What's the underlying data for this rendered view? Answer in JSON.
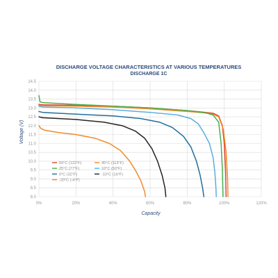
{
  "chart_data": {
    "type": "line",
    "title": "DISCHARGE VOLTAGE CHARACTERISTICS AT VARIOUS TEMPERATURES",
    "subtitle": "DISCHARGE 1C",
    "xlabel": "Capacity",
    "ylabel": "Voltage (V)",
    "xlim": [
      0,
      120
    ],
    "ylim": [
      8.0,
      14.5
    ],
    "x_ticks": [
      "0%",
      "20%",
      "40%",
      "60%",
      "80%",
      "100%",
      "120%"
    ],
    "y_ticks": [
      "8.0",
      "8.5",
      "9.0",
      "9.5",
      "10.0",
      "10.5",
      "11.0",
      "11.5",
      "12.0",
      "12.5",
      "13.0",
      "13.5",
      "14.0",
      "14.5"
    ],
    "grid": true,
    "legend_position": "bottom-left",
    "series": [
      {
        "name": "50°C (122°F)",
        "color": "#e0442b",
        "points": [
          [
            0,
            13.2
          ],
          [
            2,
            13.18
          ],
          [
            20,
            13.15
          ],
          [
            40,
            13.1
          ],
          [
            60,
            13.0
          ],
          [
            80,
            12.85
          ],
          [
            90,
            12.75
          ],
          [
            94,
            12.7
          ],
          [
            97,
            12.55
          ],
          [
            99,
            12.0
          ],
          [
            100,
            11.0
          ],
          [
            100.7,
            9.5
          ],
          [
            101,
            8.0
          ]
        ]
      },
      {
        "name": "45°C (113°F)",
        "color": "#f08a2a",
        "points": [
          [
            0,
            13.15
          ],
          [
            2,
            13.12
          ],
          [
            20,
            13.1
          ],
          [
            40,
            13.05
          ],
          [
            60,
            12.95
          ],
          [
            80,
            12.8
          ],
          [
            90,
            12.72
          ],
          [
            94,
            12.65
          ],
          [
            97,
            12.5
          ],
          [
            99.5,
            11.8
          ],
          [
            101,
            10.5
          ],
          [
            101.8,
            9.0
          ],
          [
            102,
            8.0
          ]
        ]
      },
      {
        "name": "25°C (77°F)",
        "color": "#4cb050",
        "points": [
          [
            0,
            13.7
          ],
          [
            0.6,
            13.35
          ],
          [
            2,
            13.3
          ],
          [
            20,
            13.2
          ],
          [
            40,
            13.1
          ],
          [
            60,
            13.0
          ],
          [
            80,
            12.85
          ],
          [
            90,
            12.72
          ],
          [
            94,
            12.6
          ],
          [
            97,
            12.2
          ],
          [
            98.3,
            11.0
          ],
          [
            99,
            9.5
          ],
          [
            99.3,
            8.0
          ]
        ]
      },
      {
        "name": "10°C (50°F)",
        "color": "#5aaede",
        "points": [
          [
            0,
            13.1
          ],
          [
            2,
            13.05
          ],
          [
            20,
            13.0
          ],
          [
            40,
            12.9
          ],
          [
            60,
            12.75
          ],
          [
            75,
            12.6
          ],
          [
            82,
            12.4
          ],
          [
            86,
            12.1
          ],
          [
            89,
            11.6
          ],
          [
            92,
            11.0
          ],
          [
            94,
            10.2
          ],
          [
            95,
            9.3
          ],
          [
            95.5,
            8.5
          ],
          [
            95.7,
            8.0
          ]
        ]
      },
      {
        "name": "0°C (32°F)",
        "color": "#1f6e9a",
        "points": [
          [
            0,
            12.8
          ],
          [
            2,
            12.75
          ],
          [
            20,
            12.65
          ],
          [
            40,
            12.55
          ],
          [
            55,
            12.4
          ],
          [
            65,
            12.2
          ],
          [
            72,
            11.9
          ],
          [
            78,
            11.4
          ],
          [
            82,
            10.8
          ],
          [
            85,
            10.0
          ],
          [
            87,
            9.2
          ],
          [
            88.3,
            8.5
          ],
          [
            89,
            8.0
          ]
        ]
      },
      {
        "name": "-10°C (14°F)",
        "color": "#222222",
        "points": [
          [
            0,
            12.5
          ],
          [
            2,
            12.45
          ],
          [
            20,
            12.35
          ],
          [
            35,
            12.2
          ],
          [
            45,
            12.0
          ],
          [
            52,
            11.7
          ],
          [
            57,
            11.3
          ],
          [
            61,
            10.7
          ],
          [
            64,
            10.0
          ],
          [
            66.5,
            9.2
          ],
          [
            68,
            8.5
          ],
          [
            68.5,
            8.0
          ]
        ]
      },
      {
        "name": "-20°C (-4°F)",
        "color": "#f08a2a",
        "points": [
          [
            0,
            12.0
          ],
          [
            1,
            11.85
          ],
          [
            3,
            11.75
          ],
          [
            10,
            11.62
          ],
          [
            20,
            11.5
          ],
          [
            30,
            11.3
          ],
          [
            38,
            11.0
          ],
          [
            44,
            10.6
          ],
          [
            49,
            10.0
          ],
          [
            52,
            9.5
          ],
          [
            55,
            8.9
          ],
          [
            57,
            8.3
          ],
          [
            57.5,
            8.0
          ]
        ]
      }
    ]
  }
}
